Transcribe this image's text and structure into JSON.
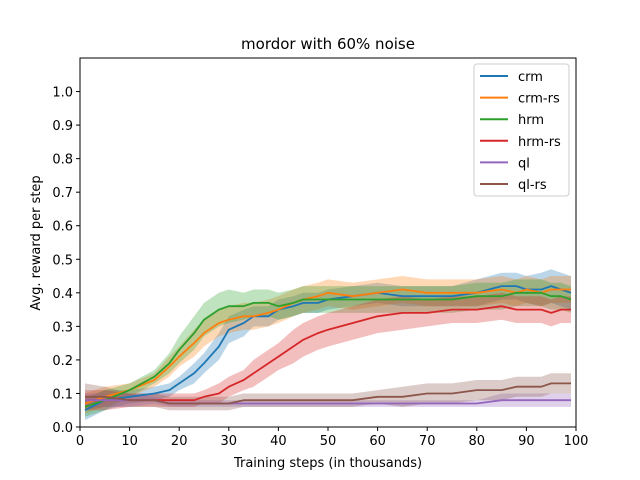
{
  "chart_data": {
    "type": "line",
    "title": "mordor with 60% noise",
    "xlabel": "Training steps (in thousands)",
    "ylabel": "Avg. reward per step",
    "xlim": [
      0,
      100
    ],
    "ylim": [
      0,
      1.1
    ],
    "xticks": [
      0,
      10,
      20,
      30,
      40,
      50,
      60,
      70,
      80,
      90,
      100
    ],
    "xtick_labels": [
      "0",
      "10",
      "20",
      "30",
      "40",
      "50",
      "60",
      "70",
      "80",
      "90",
      "100"
    ],
    "yticks": [
      0.0,
      0.1,
      0.2,
      0.3,
      0.4,
      0.5,
      0.6,
      0.7,
      0.8,
      0.9,
      1.0
    ],
    "ytick_labels": [
      "0.0",
      "0.1",
      "0.2",
      "0.3",
      "0.4",
      "0.5",
      "0.6",
      "0.7",
      "0.8",
      "0.9",
      "1.0"
    ],
    "grid": false,
    "legend_position": "top-right",
    "x": [
      1,
      5,
      10,
      15,
      18,
      20,
      23,
      25,
      28,
      30,
      33,
      35,
      38,
      40,
      43,
      45,
      48,
      50,
      55,
      60,
      65,
      70,
      75,
      80,
      85,
      88,
      90,
      93,
      95,
      97,
      99
    ],
    "series": [
      {
        "name": "crm",
        "color": "#1f77b4",
        "values": [
          0.05,
          0.08,
          0.09,
          0.1,
          0.11,
          0.13,
          0.16,
          0.19,
          0.24,
          0.29,
          0.31,
          0.33,
          0.33,
          0.35,
          0.36,
          0.37,
          0.37,
          0.38,
          0.39,
          0.4,
          0.39,
          0.39,
          0.39,
          0.4,
          0.42,
          0.42,
          0.41,
          0.41,
          0.42,
          0.41,
          0.4
        ],
        "band": [
          0.03,
          0.03,
          0.02,
          0.02,
          0.02,
          0.02,
          0.03,
          0.03,
          0.04,
          0.04,
          0.04,
          0.03,
          0.03,
          0.03,
          0.03,
          0.03,
          0.03,
          0.03,
          0.03,
          0.03,
          0.03,
          0.03,
          0.03,
          0.04,
          0.04,
          0.04,
          0.04,
          0.05,
          0.05,
          0.05,
          0.05
        ]
      },
      {
        "name": "crm-rs",
        "color": "#ff7f0e",
        "values": [
          0.07,
          0.09,
          0.11,
          0.14,
          0.18,
          0.21,
          0.25,
          0.28,
          0.31,
          0.32,
          0.33,
          0.33,
          0.34,
          0.35,
          0.37,
          0.38,
          0.39,
          0.4,
          0.39,
          0.4,
          0.41,
          0.4,
          0.4,
          0.4,
          0.41,
          0.4,
          0.41,
          0.4,
          0.41,
          0.41,
          0.41
        ],
        "band": [
          0.03,
          0.03,
          0.02,
          0.02,
          0.03,
          0.03,
          0.04,
          0.04,
          0.04,
          0.04,
          0.04,
          0.04,
          0.04,
          0.04,
          0.04,
          0.04,
          0.04,
          0.04,
          0.04,
          0.04,
          0.04,
          0.04,
          0.04,
          0.04,
          0.04,
          0.04,
          0.04,
          0.04,
          0.04,
          0.04,
          0.04
        ]
      },
      {
        "name": "hrm",
        "color": "#2ca02c",
        "values": [
          0.06,
          0.08,
          0.11,
          0.15,
          0.19,
          0.23,
          0.28,
          0.32,
          0.35,
          0.36,
          0.36,
          0.37,
          0.37,
          0.36,
          0.37,
          0.38,
          0.38,
          0.38,
          0.38,
          0.38,
          0.38,
          0.38,
          0.38,
          0.39,
          0.39,
          0.4,
          0.4,
          0.4,
          0.39,
          0.39,
          0.38
        ],
        "band": [
          0.03,
          0.03,
          0.02,
          0.02,
          0.03,
          0.04,
          0.05,
          0.05,
          0.05,
          0.05,
          0.04,
          0.04,
          0.04,
          0.04,
          0.04,
          0.04,
          0.04,
          0.04,
          0.04,
          0.04,
          0.04,
          0.04,
          0.04,
          0.04,
          0.04,
          0.04,
          0.04,
          0.04,
          0.04,
          0.04,
          0.04
        ]
      },
      {
        "name": "hrm-rs",
        "color": "#d62728",
        "values": [
          0.08,
          0.08,
          0.08,
          0.08,
          0.08,
          0.08,
          0.08,
          0.09,
          0.1,
          0.12,
          0.14,
          0.16,
          0.19,
          0.21,
          0.24,
          0.26,
          0.28,
          0.29,
          0.31,
          0.33,
          0.34,
          0.34,
          0.35,
          0.35,
          0.36,
          0.35,
          0.35,
          0.35,
          0.34,
          0.35,
          0.35
        ],
        "band": [
          0.03,
          0.03,
          0.02,
          0.02,
          0.02,
          0.02,
          0.02,
          0.02,
          0.03,
          0.03,
          0.03,
          0.04,
          0.04,
          0.04,
          0.05,
          0.05,
          0.05,
          0.05,
          0.05,
          0.05,
          0.05,
          0.04,
          0.04,
          0.04,
          0.04,
          0.04,
          0.04,
          0.04,
          0.04,
          0.04,
          0.04
        ]
      },
      {
        "name": "ql",
        "color": "#9467bd",
        "values": [
          0.08,
          0.08,
          0.08,
          0.08,
          0.07,
          0.07,
          0.07,
          0.07,
          0.07,
          0.07,
          0.07,
          0.07,
          0.07,
          0.07,
          0.07,
          0.07,
          0.07,
          0.07,
          0.07,
          0.07,
          0.07,
          0.07,
          0.07,
          0.07,
          0.08,
          0.08,
          0.08,
          0.08,
          0.08,
          0.08,
          0.08
        ],
        "band": [
          0.02,
          0.02,
          0.02,
          0.01,
          0.01,
          0.01,
          0.01,
          0.01,
          0.01,
          0.01,
          0.01,
          0.01,
          0.01,
          0.01,
          0.01,
          0.01,
          0.01,
          0.01,
          0.01,
          0.01,
          0.01,
          0.01,
          0.01,
          0.01,
          0.02,
          0.02,
          0.02,
          0.02,
          0.02,
          0.02,
          0.02
        ]
      },
      {
        "name": "ql-rs",
        "color": "#8c564b",
        "values": [
          0.09,
          0.09,
          0.08,
          0.08,
          0.07,
          0.07,
          0.07,
          0.07,
          0.07,
          0.07,
          0.08,
          0.08,
          0.08,
          0.08,
          0.08,
          0.08,
          0.08,
          0.08,
          0.08,
          0.09,
          0.09,
          0.1,
          0.1,
          0.11,
          0.11,
          0.12,
          0.12,
          0.12,
          0.13,
          0.13,
          0.13
        ],
        "band": [
          0.04,
          0.03,
          0.02,
          0.02,
          0.02,
          0.02,
          0.02,
          0.02,
          0.02,
          0.02,
          0.02,
          0.02,
          0.02,
          0.02,
          0.02,
          0.02,
          0.02,
          0.02,
          0.02,
          0.02,
          0.03,
          0.03,
          0.03,
          0.03,
          0.03,
          0.03,
          0.03,
          0.03,
          0.03,
          0.03,
          0.03
        ]
      }
    ]
  }
}
